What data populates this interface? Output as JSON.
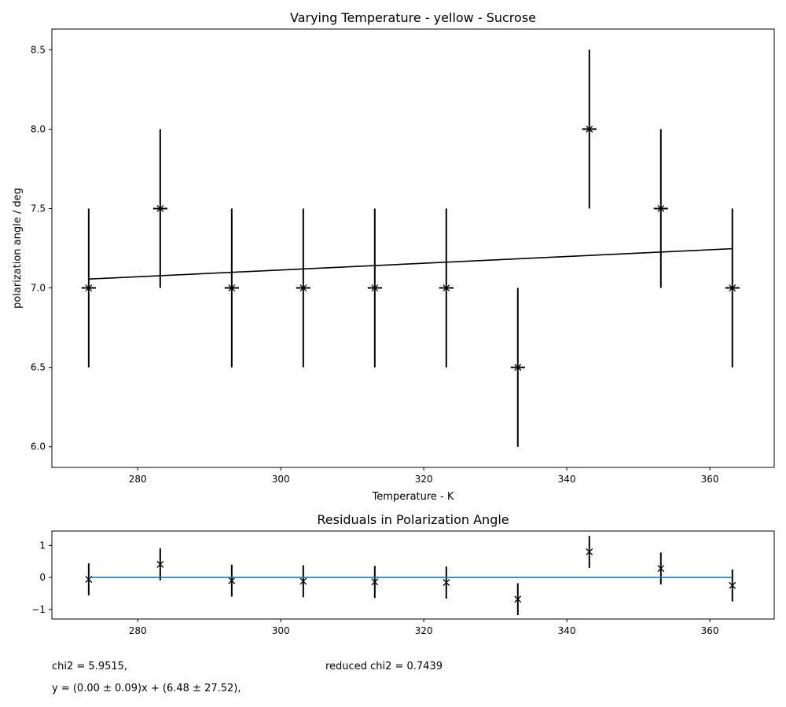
{
  "chart_data": [
    {
      "type": "scatter",
      "title": "Varying Temperature - yellow - Sucrose",
      "xlabel": "Temperature - K",
      "ylabel": "polarization angle / deg",
      "xlim": [
        268,
        369
      ],
      "ylim": [
        5.87,
        8.63
      ],
      "xticks": [
        280,
        300,
        320,
        340,
        360
      ],
      "yticks": [
        6.0,
        6.5,
        7.0,
        7.5,
        8.0,
        8.5
      ],
      "xtick_labels": [
        "280",
        "300",
        "320",
        "340",
        "360"
      ],
      "ytick_labels": [
        "6.0",
        "6.5",
        "7.0",
        "7.5",
        "8.0",
        "8.5"
      ],
      "grid": false,
      "series": [
        {
          "marker": "x",
          "color": "#000000",
          "x": [
            273.15,
            283.15,
            293.15,
            303.15,
            313.15,
            323.15,
            333.15,
            343.15,
            353.15,
            363.15
          ],
          "y": [
            7.0,
            7.5,
            7.0,
            7.0,
            7.0,
            7.0,
            6.5,
            8.0,
            7.5,
            7.0
          ],
          "yerr": [
            0.5,
            0.5,
            0.5,
            0.5,
            0.5,
            0.5,
            0.5,
            0.5,
            0.5,
            0.5
          ],
          "xerr": [
            1,
            1,
            1,
            1,
            1,
            1,
            1,
            1,
            1,
            1
          ]
        },
        {
          "type": "line",
          "color": "#000000",
          "x": [
            273.15,
            363.15
          ],
          "y": [
            7.056,
            7.247
          ]
        }
      ]
    },
    {
      "type": "scatter",
      "title": "Residuals in Polarization Angle",
      "xlabel": "",
      "ylabel": "",
      "xlim": [
        268,
        369
      ],
      "ylim": [
        -1.3,
        1.45
      ],
      "xticks": [
        280,
        300,
        320,
        340,
        360
      ],
      "yticks": [
        -1,
        0,
        1
      ],
      "xtick_labels": [
        "280",
        "300",
        "320",
        "340",
        "360"
      ],
      "ytick_labels": [
        "−1",
        "0",
        "1"
      ],
      "grid": false,
      "series": [
        {
          "marker": "x",
          "color": "#000000",
          "x": [
            273.15,
            283.15,
            293.15,
            303.15,
            313.15,
            323.15,
            333.15,
            343.15,
            353.15,
            363.15
          ],
          "y": [
            -0.06,
            0.41,
            -0.1,
            -0.12,
            -0.14,
            -0.16,
            -0.68,
            0.8,
            0.28,
            -0.25
          ],
          "yerr": [
            0.5,
            0.5,
            0.5,
            0.5,
            0.5,
            0.5,
            0.5,
            0.5,
            0.5,
            0.5
          ]
        },
        {
          "type": "line",
          "color": "#1f77b4",
          "x": [
            273.15,
            363.15
          ],
          "y": [
            0,
            0
          ]
        }
      ]
    }
  ],
  "fit_stats": {
    "chi2": "chi2 = 5.9515,",
    "reduced_chi2": "reduced chi2 = 0.7439",
    "fit_equation": "y = (0.00 ± 0.09)x + (6.48 ± 27.52),"
  }
}
